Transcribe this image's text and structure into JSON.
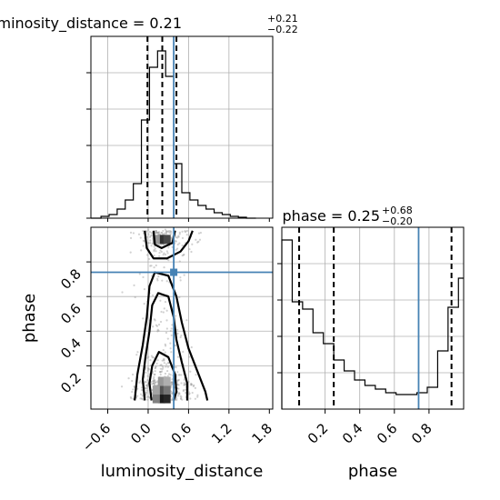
{
  "chart_data": [
    {
      "type": "histogram",
      "parameter": "luminosity_distance",
      "title": {
        "prefix": "luminosity_distance = ",
        "median": "0.21",
        "plus": "+0.21",
        "minus": "−0.22"
      },
      "xlim": [
        -0.85,
        1.85
      ],
      "ylim": [
        0,
        1.0
      ],
      "grid": true,
      "bin_edges": [
        -0.85,
        -0.7,
        -0.58,
        -0.46,
        -0.34,
        -0.22,
        -0.1,
        0.02,
        0.14,
        0.26,
        0.38,
        0.5,
        0.62,
        0.74,
        0.86,
        0.98,
        1.1,
        1.22,
        1.34,
        1.46,
        1.6
      ],
      "counts": [
        0,
        0.01,
        0.02,
        0.05,
        0.1,
        0.19,
        0.54,
        0.83,
        0.92,
        0.78,
        0.3,
        0.14,
        0.1,
        0.07,
        0.05,
        0.03,
        0.02,
        0.01,
        0.005,
        0.0
      ],
      "quantile_lines": [
        -0.01,
        0.21,
        0.42
      ],
      "truth": 0.38
    },
    {
      "type": "histogram",
      "parameter": "phase",
      "title": {
        "prefix": "phase = ",
        "median": "0.25",
        "plus": "+0.68",
        "minus": "−0.20"
      },
      "xlim": [
        -0.05,
        1.0
      ],
      "ylim": [
        0,
        1.0
      ],
      "grid": true,
      "bin_edges": [
        -0.05,
        0.01,
        0.07,
        0.13,
        0.19,
        0.25,
        0.31,
        0.37,
        0.43,
        0.49,
        0.55,
        0.61,
        0.67,
        0.73,
        0.79,
        0.85,
        0.91,
        0.97,
        1.0
      ],
      "counts": [
        0.93,
        0.59,
        0.55,
        0.42,
        0.36,
        0.27,
        0.21,
        0.16,
        0.13,
        0.11,
        0.09,
        0.08,
        0.08,
        0.09,
        0.12,
        0.32,
        0.56,
        0.72
      ],
      "quantile_lines": [
        0.05,
        0.25,
        0.93
      ],
      "truth": 0.74
    },
    {
      "type": "scatter",
      "x_param": "luminosity_distance",
      "y_param": "phase",
      "xlabel": "luminosity_distance",
      "ylabel": "phase",
      "xlim": [
        -0.85,
        1.85
      ],
      "ylim": [
        -0.05,
        1.0
      ],
      "xticks": [
        -0.6,
        0.0,
        0.6,
        1.2,
        1.8
      ],
      "yticks": [
        0.2,
        0.4,
        0.6,
        0.8
      ],
      "truth": [
        0.38,
        0.74
      ],
      "density_cells": [
        {
          "x": 0.2,
          "y": 0.01,
          "v": 1.0
        },
        {
          "x": 0.28,
          "y": 0.01,
          "v": 0.95
        },
        {
          "x": 0.12,
          "y": 0.01,
          "v": 0.55
        },
        {
          "x": 0.2,
          "y": 0.06,
          "v": 0.75
        },
        {
          "x": 0.28,
          "y": 0.06,
          "v": 0.6
        },
        {
          "x": 0.12,
          "y": 0.06,
          "v": 0.4
        },
        {
          "x": 0.2,
          "y": 0.11,
          "v": 0.45
        },
        {
          "x": 0.28,
          "y": 0.11,
          "v": 0.35
        },
        {
          "x": 0.2,
          "y": 0.93,
          "v": 0.9
        },
        {
          "x": 0.28,
          "y": 0.93,
          "v": 0.8
        },
        {
          "x": 0.12,
          "y": 0.93,
          "v": 0.45
        }
      ],
      "contours": [
        {
          "level": "inner-bottom",
          "points": [
            [
              0.05,
              0.0
            ],
            [
              0.02,
              0.1
            ],
            [
              0.06,
              0.2
            ],
            [
              0.16,
              0.28
            ],
            [
              0.3,
              0.25
            ],
            [
              0.4,
              0.15
            ],
            [
              0.42,
              0.05
            ],
            [
              0.38,
              0.0
            ]
          ]
        },
        {
          "level": "middle-bottom",
          "points": [
            [
              -0.05,
              0.0
            ],
            [
              -0.08,
              0.12
            ],
            [
              -0.04,
              0.25
            ],
            [
              0.02,
              0.4
            ],
            [
              0.06,
              0.55
            ],
            [
              0.15,
              0.62
            ],
            [
              0.3,
              0.6
            ],
            [
              0.38,
              0.48
            ],
            [
              0.42,
              0.35
            ],
            [
              0.5,
              0.22
            ],
            [
              0.58,
              0.1
            ],
            [
              0.58,
              0.0
            ]
          ]
        },
        {
          "level": "outer-bottom",
          "points": [
            [
              -0.2,
              0.0
            ],
            [
              -0.16,
              0.15
            ],
            [
              -0.08,
              0.32
            ],
            [
              -0.02,
              0.48
            ],
            [
              0.02,
              0.66
            ],
            [
              0.1,
              0.74
            ],
            [
              0.3,
              0.72
            ],
            [
              0.42,
              0.6
            ],
            [
              0.5,
              0.45
            ],
            [
              0.6,
              0.3
            ],
            [
              0.72,
              0.18
            ],
            [
              0.85,
              0.05
            ],
            [
              0.88,
              0.0
            ]
          ]
        },
        {
          "level": "inner-top",
          "points": [
            [
              0.08,
              0.98
            ],
            [
              0.1,
              0.9
            ],
            [
              0.2,
              0.88
            ],
            [
              0.36,
              0.91
            ],
            [
              0.4,
              0.98
            ]
          ]
        },
        {
          "level": "outer-top",
          "points": [
            [
              -0.05,
              0.98
            ],
            [
              -0.02,
              0.88
            ],
            [
              0.08,
              0.82
            ],
            [
              0.28,
              0.82
            ],
            [
              0.48,
              0.86
            ],
            [
              0.6,
              0.92
            ],
            [
              0.66,
              0.98
            ]
          ]
        }
      ]
    }
  ],
  "colors": {
    "truth": "#4682b4",
    "line": "#000000",
    "grid": "#b0b0b0"
  }
}
